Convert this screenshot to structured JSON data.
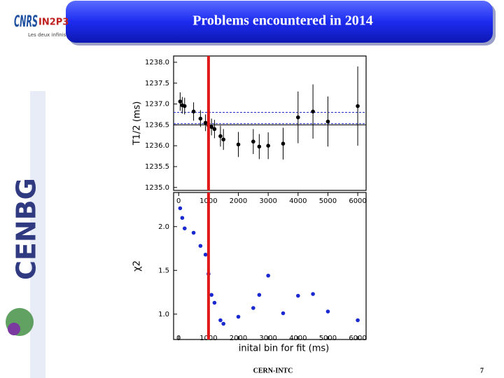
{
  "header": {
    "title": "Problems encountered in 2014"
  },
  "logos": {
    "cnrs": "CNRS",
    "in2p3": "IN2P3",
    "in2p3_tagline": "Les deux infinis",
    "lab": "CENBG"
  },
  "footer": {
    "text": "CERN-INTC",
    "page": "7"
  },
  "chart_data": [
    {
      "type": "scatter",
      "y_label": "T1/2 (ms)",
      "color": "#000000",
      "x": [
        50,
        120,
        200,
        500,
        730,
        900,
        1000,
        1100,
        1200,
        1400,
        1500,
        2000,
        2500,
        2700,
        3000,
        3500,
        4000,
        4500,
        5000,
        6000
      ],
      "values": [
        1237.06,
        1236.97,
        1236.95,
        1236.82,
        1236.65,
        1236.55,
        1236.48,
        1236.45,
        1236.4,
        1236.23,
        1236.15,
        1236.03,
        1236.1,
        1235.98,
        1236.0,
        1236.05,
        1236.68,
        1236.82,
        1236.58,
        1236.95
      ],
      "errors": [
        0.22,
        0.2,
        0.2,
        0.22,
        0.2,
        0.2,
        0.2,
        0.2,
        0.22,
        0.25,
        0.25,
        0.3,
        0.3,
        0.3,
        0.32,
        0.38,
        0.62,
        0.65,
        0.6,
        0.95
      ],
      "hlines": [
        {
          "value": 1236.8,
          "color": "#2030c0",
          "dash": true
        },
        {
          "value": 1236.53,
          "color": "#2030c0",
          "dash": true
        },
        {
          "value": 1236.5,
          "color": "#000000",
          "dash": false
        }
      ],
      "vline": {
        "value": 1000,
        "color": "#e01818"
      },
      "xlim": [
        -170,
        6280
      ],
      "ylim": [
        1234.93,
        1238.15
      ],
      "yticks": [
        {
          "value": 1235,
          "label": "1235.0"
        },
        1235.5,
        {
          "value": 1236,
          "label": "1236.0"
        },
        1236.5,
        {
          "value": 1237,
          "label": "1237.0"
        },
        1237.5,
        {
          "value": 1238,
          "label": "1238.0"
        }
      ]
    },
    {
      "type": "scatter",
      "y_label": "χ2",
      "x_label": "inital bin for fit (ms)",
      "color": "#1a2ad0",
      "x": [
        50,
        120,
        200,
        500,
        730,
        900,
        1000,
        1100,
        1200,
        1400,
        1500,
        2000,
        2500,
        2700,
        3000,
        3500,
        4000,
        4500,
        5000,
        6000
      ],
      "values": [
        2.21,
        2.1,
        1.98,
        1.93,
        1.78,
        1.68,
        1.46,
        1.22,
        1.13,
        0.93,
        0.89,
        0.97,
        1.07,
        1.22,
        1.44,
        1.01,
        1.21,
        1.23,
        1.03,
        0.93
      ],
      "vline": {
        "value": 1000,
        "color": "#e01818"
      },
      "xlim": [
        -170,
        6280
      ],
      "ylim": [
        0.71,
        2.39
      ],
      "xticks": [
        0,
        1000,
        2000,
        3000,
        4000,
        5000,
        6000
      ],
      "yticks": [
        {
          "value": 1,
          "label": "1.0"
        },
        1.5,
        {
          "value": 2,
          "label": "2.0"
        }
      ]
    }
  ]
}
